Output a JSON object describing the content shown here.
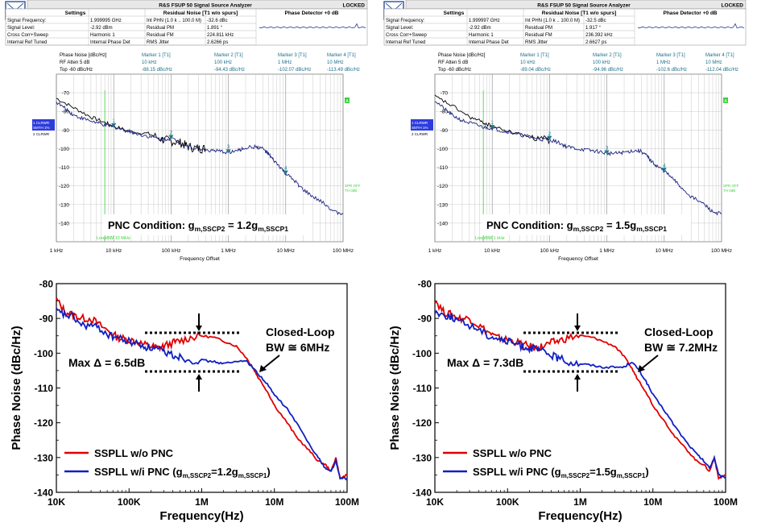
{
  "analyzers": [
    {
      "title": "R&S FSUP 50 Signal Source Analyzer",
      "status": "LOCKED",
      "settings_header": "Settings",
      "residual_header": "Residual Noise [T1 w/o spurs]",
      "phase_header": "Phase Detector +0 dB",
      "settings": [
        [
          "Signal Frequency:",
          "1.999995 GHz"
        ],
        [
          "Signal Level:",
          "-2.92 dBm"
        ],
        [
          "Cross Corr+Sweep",
          "Harmonic 1"
        ],
        [
          "Internal Ref Tuned",
          "Internal Phase Det"
        ]
      ],
      "residual": [
        [
          "Int PHN (1.0 k .. 100.0 M)",
          "-32.6 dBc"
        ],
        [
          "Residual PM",
          "1.891 °"
        ],
        [
          "Residual FM",
          "224.811 kHz"
        ],
        [
          "RMS Jitter",
          "2.6266 ps"
        ]
      ],
      "marker_left": [
        "Phase Noise [dBc/Hz]",
        "RF Atten    5 dB",
        "Top -60 dBc/Hz"
      ],
      "markers": [
        {
          "name": "Marker 1 [T1]",
          "freq": "10 kHz",
          "value": "-88.15 dBc/Hz"
        },
        {
          "name": "Marker 2 [T1]",
          "freq": "100 kHz",
          "value": "-94.43 dBc/Hz"
        },
        {
          "name": "Marker 3 [T1]",
          "freq": "1 MHz",
          "value": "-102.07 dBc/Hz"
        },
        {
          "name": "Marker 4 [T1]",
          "freq": "10 MHz",
          "value": "-113.49 dBc/Hz"
        }
      ],
      "side_labels": [
        "1 CLRWR",
        "SMTH 1%",
        "2 CLRWR"
      ],
      "right_labels": [
        "SPR OFF",
        "TH 0dB"
      ],
      "box_label": "A",
      "loop_label": "LoopBW 10 MHz",
      "x_axis_label": "Frequency Offset",
      "pnc_text": "PNC Condition: g",
      "pnc_sub1": "m,SSCP2",
      "pnc_mid": " = 1.2g",
      "pnc_sub2": "m,SSCP1",
      "chart_data": {
        "type": "line",
        "title": "Phase Noise [dBc/Hz]",
        "xlabel": "Frequency Offset",
        "ylabel": "Phase Noise (dBc/Hz)",
        "xscale": "log",
        "xlim": [
          1000,
          100000000
        ],
        "ylim": [
          -150,
          -60
        ],
        "ytick_labels": [
          "-70",
          "-80",
          "-90",
          "-100",
          "-110",
          "-120",
          "-130",
          "-140"
        ],
        "yticks": [
          -70,
          -80,
          -90,
          -100,
          -110,
          -120,
          -130,
          -140
        ],
        "xtick_labels": [
          "1 kHz",
          "10 kHz",
          "100 kHz",
          "1 MHz",
          "10 MHz",
          "100 MHz"
        ],
        "xticks": [
          1000,
          10000,
          100000,
          1000000,
          10000000,
          100000000
        ],
        "series": [
          {
            "name": "T1",
            "color": "#1a237e",
            "x": [
              1000,
              1500,
              2000,
              3000,
              5000,
              7000,
              10000,
              15000,
              20000,
              30000,
              50000,
              70000,
              100000,
              150000,
              200000,
              300000,
              500000,
              700000,
              1000000,
              1500000,
              2000000,
              3000000,
              4000000,
              5000000,
              6000000,
              8000000,
              10000000,
              15000000,
              20000000,
              30000000,
              50000000,
              70000000,
              100000000
            ],
            "y": [
              -75,
              -79,
              -82,
              -84,
              -86,
              -87.5,
              -88.2,
              -90,
              -91,
              -92.5,
              -94,
              -95,
              -94.5,
              -97,
              -99,
              -100,
              -101,
              -101.5,
              -102,
              -101,
              -99.5,
              -99,
              -100,
              -103,
              -106,
              -110,
              -113.5,
              -118,
              -122,
              -126,
              -130,
              -134,
              -135
            ]
          },
          {
            "name": "T2",
            "color": "#000000",
            "x": [
              1000,
              2000,
              4000,
              7000,
              10000,
              20000,
              40000,
              70000,
              100000,
              150000,
              200000,
              300000,
              400000
            ],
            "y": [
              -73,
              -78,
              -83,
              -86,
              -88,
              -91,
              -92,
              -95,
              -96,
              -97,
              -99,
              -100,
              -100
            ]
          }
        ],
        "markers": [
          {
            "label": "1",
            "x": 10000,
            "y": -88.15
          },
          {
            "label": "2",
            "x": 100000,
            "y": -94.43
          },
          {
            "label": "3",
            "x": 1000000,
            "y": -102.07
          },
          {
            "label": "4",
            "x": 10000000,
            "y": -113.49
          }
        ]
      }
    },
    {
      "title": "R&S FSUP 50 Signal Source Analyzer",
      "status": "LOCKED",
      "settings_header": "Settings",
      "residual_header": "Residual Noise [T1 w/o spurs]",
      "phase_header": "Phase Detector +0 dB",
      "settings": [
        [
          "Signal Frequency:",
          "1.999997 GHz"
        ],
        [
          "Signal Level:",
          "-2.92 dBm"
        ],
        [
          "Cross Corr+Sweep",
          "Harmonic 1"
        ],
        [
          "Internal Ref Tuned",
          "Internal Phase Det"
        ]
      ],
      "residual": [
        [
          "Int PHN (1.0 k .. 100.0 M)",
          "-32.5 dBc"
        ],
        [
          "Residual PM",
          "1.917 °"
        ],
        [
          "Residual FM",
          "236.392 kHz"
        ],
        [
          "RMS Jitter",
          "2.6627 ps"
        ]
      ],
      "marker_left": [
        "Phase Noise [dBc/Hz]",
        "RF Atten    5 dB",
        "Top -60 dBc/Hz"
      ],
      "markers": [
        {
          "name": "Marker 1 [T1]",
          "freq": "10 kHz",
          "value": "-89.04 dBc/Hz"
        },
        {
          "name": "Marker 2 [T1]",
          "freq": "100 kHz",
          "value": "-94.96 dBc/Hz"
        },
        {
          "name": "Marker 3 [T1]",
          "freq": "1 MHz",
          "value": "-102.6 dBc/Hz"
        },
        {
          "name": "Marker 4 [T1]",
          "freq": "10 MHz",
          "value": "-112.04 dBc/Hz"
        }
      ],
      "side_labels": [
        "1 CLRWR",
        "SMTH 1%",
        "2 CLRWR"
      ],
      "right_labels": [
        "SPR OFF",
        "TH 0dB"
      ],
      "box_label": "A",
      "loop_label": "LoopBW 1 kHz",
      "x_axis_label": "Frequency Offset",
      "pnc_text": "PNC Condition: g",
      "pnc_sub1": "m,SSCP2",
      "pnc_mid": " = 1.5g",
      "pnc_sub2": "m,SSCP1",
      "chart_data": {
        "type": "line",
        "title": "Phase Noise [dBc/Hz]",
        "xlabel": "Frequency Offset",
        "ylabel": "Phase Noise (dBc/Hz)",
        "xscale": "log",
        "xlim": [
          1000,
          100000000
        ],
        "ylim": [
          -150,
          -60
        ],
        "ytick_labels": [
          "-70",
          "-80",
          "-90",
          "-100",
          "-110",
          "-120",
          "-130",
          "-140"
        ],
        "yticks": [
          -70,
          -80,
          -90,
          -100,
          -110,
          -120,
          -130,
          -140
        ],
        "xtick_labels": [
          "1 kHz",
          "10 kHz",
          "100 kHz",
          "1 MHz",
          "10 MHz",
          "100 MHz"
        ],
        "xticks": [
          1000,
          10000,
          100000,
          1000000,
          10000000,
          100000000
        ],
        "series": [
          {
            "name": "T1",
            "color": "#1a237e",
            "x": [
              1000,
              1500,
              2000,
              3000,
              5000,
              7000,
              10000,
              15000,
              20000,
              30000,
              50000,
              70000,
              100000,
              150000,
              200000,
              300000,
              500000,
              700000,
              1000000,
              1500000,
              2000000,
              3000000,
              4000000,
              5000000,
              6000000,
              8000000,
              10000000,
              15000000,
              20000000,
              30000000,
              50000000,
              70000000,
              100000000
            ],
            "y": [
              -74,
              -79,
              -82,
              -85,
              -87,
              -88.5,
              -89,
              -90.5,
              -91,
              -92.5,
              -94,
              -95,
              -95,
              -97,
              -99,
              -100,
              -101,
              -101.5,
              -102.6,
              -102.5,
              -102,
              -101,
              -101.5,
              -104,
              -107,
              -110,
              -112,
              -117,
              -121,
              -126,
              -130,
              -134,
              -135
            ]
          },
          {
            "name": "T2",
            "color": "#000000",
            "x": [
              1000,
              2000,
              4000,
              7000,
              10000,
              20000,
              40000,
              70000,
              100000
            ],
            "y": [
              -72,
              -77,
              -83,
              -86,
              -88,
              -91,
              -93,
              -95,
              -96
            ]
          }
        ],
        "markers": [
          {
            "label": "1",
            "x": 10000,
            "y": -89.04
          },
          {
            "label": "2",
            "x": 100000,
            "y": -94.96
          },
          {
            "label": "3",
            "x": 1000000,
            "y": -102.6
          },
          {
            "label": "4",
            "x": 10000000,
            "y": -112.04
          }
        ]
      }
    }
  ],
  "plots": [
    {
      "annotation_max": "Max Δ = 6.5dB",
      "annotation_bw_1": "Closed-Loop",
      "annotation_bw_2": "BW ≅ 6MHz",
      "legend_red": "SSPLL w/o PNC",
      "legend_blue_pre": "SSPLL w/i PNC (g",
      "legend_blue_sub1": "m,SSCP2",
      "legend_blue_mid": "=1.2g",
      "legend_blue_sub2": "m,SSCP1",
      "legend_blue_post": ")",
      "chart_data": {
        "type": "line",
        "xlabel": "Frequency(Hz)",
        "ylabel": "Phase Noise (dBc/Hz)",
        "xscale": "log",
        "xlim": [
          10000,
          100000000
        ],
        "ylim": [
          -140,
          -80
        ],
        "yticks": [
          -80,
          -90,
          -100,
          -110,
          -120,
          -130,
          -140
        ],
        "ytick_labels": [
          "-80",
          "-90",
          "-100",
          "-110",
          "-120",
          "-130",
          "-140"
        ],
        "xticks": [
          10000,
          100000,
          1000000,
          10000000,
          100000000
        ],
        "xtick_labels": [
          "10K",
          "100K",
          "1M",
          "10M",
          "100M"
        ],
        "series": [
          {
            "name": "SSPLL w/o PNC",
            "color": "#e00000",
            "x": [
              10000,
              13000,
              17000,
              22000,
              30000,
              40000,
              55000,
              70000,
              90000,
              120000,
              160000,
              200000,
              250000,
              300000,
              400000,
              500000,
              700000,
              1000000,
              1500000,
              2000000,
              3000000,
              4000000,
              5000000,
              6000000,
              8000000,
              10000000,
              15000000,
              20000000,
              30000000,
              40000000,
              50000000,
              60000000,
              70000000,
              80000000,
              100000000
            ],
            "y": [
              -84.5,
              -88,
              -89,
              -90,
              -90,
              -92,
              -94,
              -95.5,
              -96,
              -96.5,
              -97.5,
              -98,
              -98.5,
              -98,
              -97,
              -96.5,
              -95.5,
              -95,
              -95.5,
              -96.5,
              -98,
              -101,
              -104,
              -107,
              -111,
              -115,
              -120,
              -124,
              -128,
              -131,
              -132,
              -134,
              -130,
              -136,
              -135
            ]
          },
          {
            "name": "SSPLL w/i PNC",
            "color": "#1020c0",
            "x": [
              10000,
              13000,
              17000,
              22000,
              30000,
              40000,
              55000,
              70000,
              90000,
              120000,
              160000,
              200000,
              250000,
              300000,
              400000,
              500000,
              700000,
              1000000,
              1500000,
              2000000,
              3000000,
              4000000,
              5000000,
              6000000,
              8000000,
              10000000,
              15000000,
              20000000,
              30000000,
              40000000,
              50000000,
              60000000,
              70000000,
              80000000,
              100000000
            ],
            "y": [
              -88,
              -89,
              -89.5,
              -92,
              -92,
              -93,
              -95,
              -95.5,
              -96.5,
              -97,
              -98,
              -98.5,
              -99,
              -99.5,
              -100.5,
              -101,
              -102,
              -102,
              -102.5,
              -103,
              -102.5,
              -102,
              -104,
              -106,
              -109,
              -112,
              -116,
              -120,
              -126,
              -130,
              -133,
              -134,
              -131,
              -136,
              -136
            ]
          }
        ]
      }
    },
    {
      "annotation_max": "Max Δ = 7.3dB",
      "annotation_bw_1": "Closed-Loop",
      "annotation_bw_2": "BW ≅ 7.2MHz",
      "legend_red": "SSPLL w/o PNC",
      "legend_blue_pre": "SSPLL w/i PNC (g",
      "legend_blue_sub1": "m,SSCP2",
      "legend_blue_mid": "=1.5g",
      "legend_blue_sub2": "m,SSCP1",
      "legend_blue_post": ")",
      "chart_data": {
        "type": "line",
        "xlabel": "Frequency(Hz)",
        "ylabel": "Phase Noise (dBc/Hz)",
        "xscale": "log",
        "xlim": [
          10000,
          100000000
        ],
        "ylim": [
          -140,
          -80
        ],
        "yticks": [
          -80,
          -90,
          -100,
          -110,
          -120,
          -130,
          -140
        ],
        "ytick_labels": [
          "-80",
          "-90",
          "-100",
          "-110",
          "-120",
          "-130",
          "-140"
        ],
        "xticks": [
          10000,
          100000,
          1000000,
          10000000,
          100000000
        ],
        "xtick_labels": [
          "10K",
          "100K",
          "1M",
          "10M",
          "100M"
        ],
        "series": [
          {
            "name": "SSPLL w/o PNC",
            "color": "#e00000",
            "x": [
              10000,
              13000,
              17000,
              22000,
              30000,
              40000,
              55000,
              70000,
              90000,
              120000,
              160000,
              200000,
              250000,
              300000,
              400000,
              500000,
              700000,
              1000000,
              1500000,
              2000000,
              3000000,
              4000000,
              5000000,
              6000000,
              8000000,
              10000000,
              15000000,
              20000000,
              30000000,
              40000000,
              50000000,
              60000000,
              70000000,
              80000000,
              100000000
            ],
            "y": [
              -84.5,
              -88,
              -89,
              -90,
              -90,
              -92,
              -94,
              -95.5,
              -96,
              -96.5,
              -97.5,
              -98,
              -98.5,
              -98,
              -97,
              -96.5,
              -95.5,
              -95,
              -95.5,
              -96.5,
              -98,
              -101,
              -104,
              -107,
              -111,
              -115,
              -120,
              -124,
              -128,
              -131,
              -132,
              -134,
              -130,
              -136,
              -135
            ]
          },
          {
            "name": "SSPLL w/i PNC",
            "color": "#1020c0",
            "x": [
              10000,
              13000,
              17000,
              22000,
              30000,
              40000,
              55000,
              70000,
              90000,
              120000,
              160000,
              200000,
              250000,
              300000,
              400000,
              500000,
              700000,
              1000000,
              1500000,
              2000000,
              3000000,
              4000000,
              5000000,
              6000000,
              8000000,
              10000000,
              15000000,
              20000000,
              30000000,
              40000000,
              50000000,
              60000000,
              70000000,
              80000000,
              100000000
            ],
            "y": [
              -88,
              -89,
              -89.5,
              -91,
              -92,
              -93,
              -95,
              -95.5,
              -96.5,
              -97,
              -98,
              -98.5,
              -99,
              -99.5,
              -100.5,
              -101.5,
              -102.5,
              -103,
              -103.5,
              -104,
              -104,
              -104,
              -102.5,
              -104,
              -108,
              -112,
              -117,
              -121,
              -126,
              -129,
              -131,
              -133,
              -130,
              -135,
              -136
            ]
          }
        ]
      }
    }
  ]
}
